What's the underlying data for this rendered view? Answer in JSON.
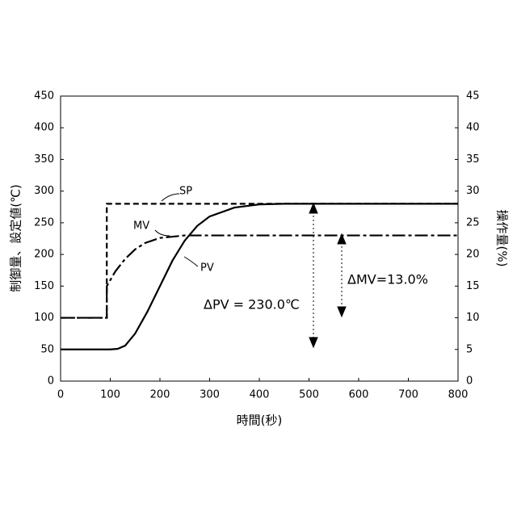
{
  "chart_data": {
    "type": "line",
    "xlabel": "時間(秒)",
    "ylabel": "制御量、設定値(℃)",
    "y2label": "操作量(%)",
    "xlim": [
      0,
      800
    ],
    "xticks": [
      0,
      100,
      200,
      300,
      400,
      500,
      600,
      700,
      800
    ],
    "ylim": [
      0,
      450
    ],
    "yticks": [
      0,
      50,
      100,
      150,
      200,
      250,
      300,
      350,
      400,
      450
    ],
    "y2lim": [
      0,
      45
    ],
    "y2ticks": [
      0,
      5,
      10,
      15,
      20,
      25,
      30,
      35,
      40,
      45
    ],
    "grid": false,
    "series": [
      {
        "name": "SP",
        "color": "#000000",
        "style": "dashed",
        "x": [
          0,
          93,
          93,
          800
        ],
        "values": [
          100,
          100,
          280,
          280
        ]
      },
      {
        "name": "MV",
        "color": "#000000",
        "style": "dashdot",
        "axis": "y2",
        "x": [
          0,
          93,
          93,
          110,
          130,
          150,
          170,
          200,
          250,
          300,
          800
        ],
        "values": [
          10,
          10,
          15,
          17.3,
          19.3,
          20.8,
          21.8,
          22.6,
          23,
          23,
          23
        ]
      },
      {
        "name": "PV",
        "color": "#000000",
        "style": "solid",
        "x": [
          0,
          100,
          115,
          130,
          150,
          175,
          200,
          225,
          250,
          275,
          300,
          350,
          400,
          450,
          800
        ],
        "values": [
          50,
          50,
          51,
          56,
          75,
          110,
          150,
          190,
          222,
          245,
          260,
          274,
          279,
          280,
          280
        ]
      }
    ],
    "annotations": [
      "ΔPV = 230.0℃",
      "ΔMV=13.0%"
    ]
  }
}
